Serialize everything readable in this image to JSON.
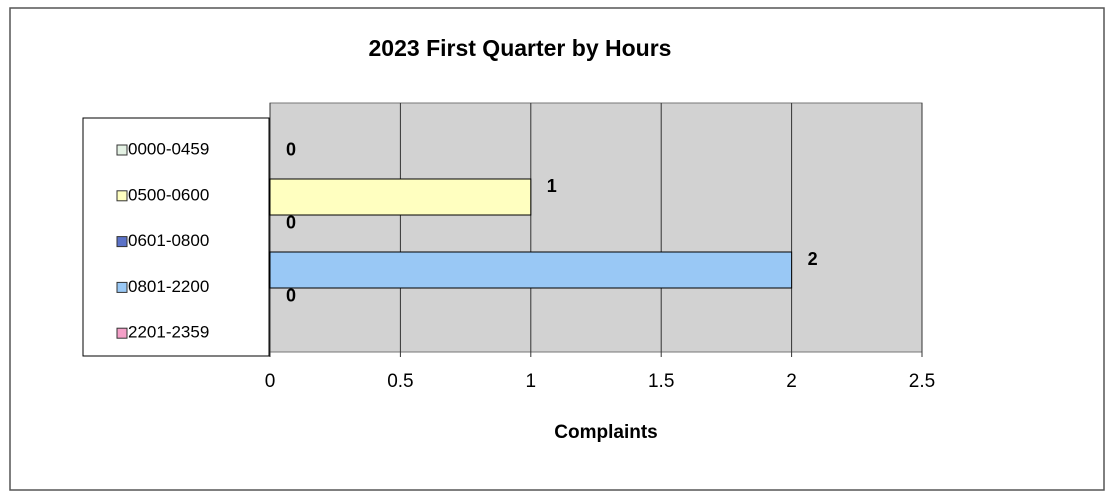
{
  "chart_data": {
    "type": "bar",
    "orientation": "horizontal",
    "title": "2023 First Quarter by Hours",
    "x_label": "Complaints",
    "series": [
      {
        "name": "0000-0459",
        "color": "#e4f2e4",
        "values": [
          0
        ]
      },
      {
        "name": "0500-0600",
        "color": "#ffffc0",
        "values": [
          1
        ]
      },
      {
        "name": "0601-0800",
        "color": "#5b72c8",
        "values": [
          0
        ]
      },
      {
        "name": "0801-2200",
        "color": "#99c8f5",
        "values": [
          2
        ]
      },
      {
        "name": "2201-2359",
        "color": "#f4a0c8",
        "values": [
          0
        ]
      }
    ],
    "xlim": [
      0,
      2.5
    ],
    "xticks": [
      0,
      0.5,
      1,
      1.5,
      2,
      2.5
    ],
    "grid": true,
    "legend": "left"
  }
}
